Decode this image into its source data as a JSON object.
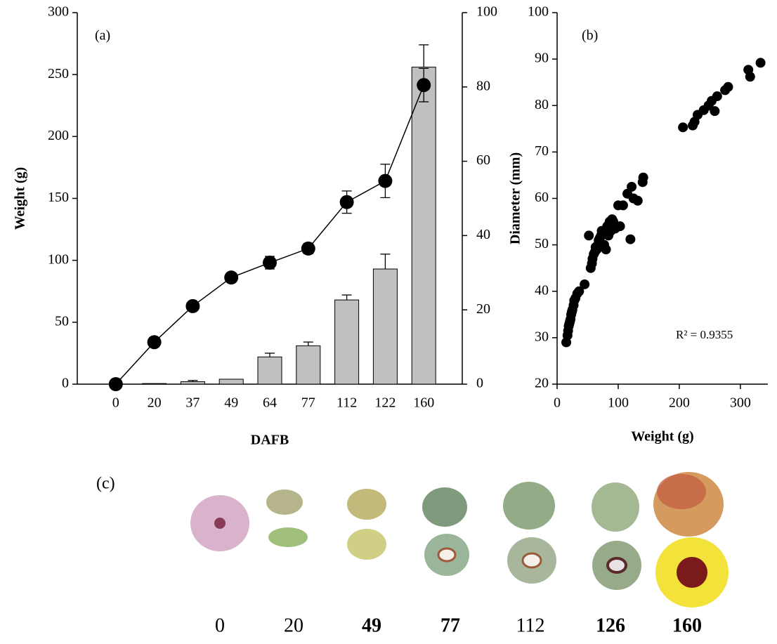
{
  "chart_data": [
    {
      "type": "bar",
      "panel_label": "(a)",
      "xlabel": "DAFB",
      "ylabel": "Weight (g)",
      "categories": [
        "0",
        "20",
        "37",
        "49",
        "64",
        "77",
        "112",
        "122",
        "160"
      ],
      "ylim": [
        0,
        300
      ],
      "yticks": [
        0,
        50,
        100,
        150,
        200,
        250,
        300
      ],
      "y2lim": [
        0,
        100
      ],
      "y2ticks": [
        0,
        20,
        40,
        60,
        80,
        100
      ],
      "series": [
        {
          "type": "bar",
          "color": "#c0c0c0",
          "values": [
            0,
            0.5,
            2,
            4,
            22,
            31,
            68,
            93,
            256
          ],
          "errors": [
            null,
            null,
            1,
            null,
            3,
            3,
            4,
            12,
            18
          ]
        },
        {
          "type": "line",
          "axis": "y2",
          "color": "#000000",
          "values": [
            0,
            11.3,
            21,
            28.7,
            32.7,
            36.5,
            49,
            54.7,
            80.5
          ],
          "errors": [
            null,
            null,
            null,
            null,
            1.7,
            1.4,
            3,
            4.5,
            4.5
          ]
        }
      ]
    },
    {
      "type": "scatter",
      "panel_label": "(b)",
      "annotation": "R² = 0.9355",
      "xlabel": "Weight (g)",
      "ylabel": "Diameter (mm)",
      "color": "#000000",
      "xlim": [
        0,
        345
      ],
      "xticks": [
        0,
        100,
        200,
        300
      ],
      "ylim": [
        20,
        100
      ],
      "yticks": [
        20,
        30,
        40,
        50,
        60,
        70,
        80,
        90,
        100
      ],
      "x": [
        15,
        17,
        18,
        19,
        20,
        21,
        22,
        23,
        24,
        25,
        27,
        28,
        30,
        33,
        36,
        45,
        52,
        55,
        57,
        58,
        60,
        62,
        63,
        65,
        67,
        68,
        70,
        72,
        73,
        75,
        77,
        78,
        80,
        82,
        84,
        86,
        88,
        90,
        92,
        95,
        100,
        103,
        108,
        115,
        120,
        122,
        125,
        132,
        140,
        141,
        206,
        222,
        225,
        230,
        240,
        248,
        253,
        258,
        262,
        275,
        280,
        313,
        316,
        333
      ],
      "values": [
        29,
        30.5,
        31.5,
        32.5,
        33,
        33.5,
        34,
        35,
        35.5,
        36,
        37,
        38,
        38.5,
        39.5,
        40,
        41.5,
        52,
        45,
        46,
        47,
        48,
        48.5,
        49.5,
        49,
        50,
        51,
        51.5,
        52,
        53,
        52.5,
        50,
        53,
        49,
        54,
        52,
        55,
        53,
        55.5,
        55,
        53.5,
        58.5,
        54,
        58.5,
        61,
        51.2,
        62.5,
        60,
        59.5,
        63.5,
        64.5,
        75.3,
        75.7,
        76.5,
        78,
        79,
        80,
        81,
        78.8,
        82,
        83.3,
        84,
        87.7,
        86.2,
        89.2
      ]
    }
  ],
  "figure_c": {
    "panel_label": "(c)",
    "stages": [
      "0",
      "20",
      "49",
      "77",
      "112",
      "126",
      "160"
    ],
    "bold": [
      false,
      false,
      true,
      true,
      false,
      true,
      true
    ]
  }
}
